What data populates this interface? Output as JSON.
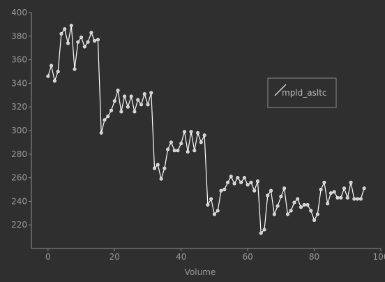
{
  "colors": {
    "background": "#2f2f2f",
    "axis": "#8c8c8c",
    "line": "#ffffff",
    "marker_fill": "#cfcfcf",
    "marker_edge": "#ffffff",
    "text": "#9a9a9a",
    "legend_border": "#8c8c8c"
  },
  "chart_data": {
    "type": "line",
    "title": "",
    "xlabel": "Volume",
    "ylabel": "",
    "xlim": [
      -5,
      100
    ],
    "ylim": [
      200,
      400
    ],
    "xticks": [
      0,
      20,
      40,
      60,
      80,
      100
    ],
    "yticks": [
      220,
      240,
      260,
      280,
      300,
      320,
      340,
      360,
      380,
      400
    ],
    "grid": false,
    "legend_position": "center-right",
    "series": [
      {
        "name": "mpld_asltc",
        "marker": "circle",
        "x": [
          0,
          1,
          2,
          3,
          4,
          5,
          6,
          7,
          8,
          9,
          10,
          11,
          12,
          13,
          14,
          15,
          16,
          17,
          18,
          19,
          20,
          21,
          22,
          23,
          24,
          25,
          26,
          27,
          28,
          29,
          30,
          31,
          32,
          33,
          34,
          35,
          36,
          37,
          38,
          39,
          40,
          41,
          42,
          43,
          44,
          45,
          46,
          47,
          48,
          49,
          50,
          51,
          52,
          53,
          54,
          55,
          56,
          57,
          58,
          59,
          60,
          61,
          62,
          63,
          64,
          65,
          66,
          67,
          68,
          69,
          70,
          71,
          72,
          73,
          74,
          75,
          76,
          77,
          78,
          79,
          80,
          81,
          82,
          83,
          84,
          85,
          86,
          87,
          88,
          89,
          90,
          91,
          92,
          93,
          94,
          95
        ],
        "y": [
          346,
          355,
          342,
          350,
          382,
          386,
          374,
          389,
          352,
          375,
          379,
          371,
          375,
          383,
          376,
          377,
          298,
          309,
          312,
          317,
          325,
          334,
          316,
          329,
          320,
          329,
          316,
          326,
          322,
          331,
          322,
          332,
          268,
          271,
          259,
          268,
          284,
          290,
          283,
          283,
          289,
          299,
          282,
          299,
          283,
          298,
          290,
          296,
          237,
          242,
          229,
          232,
          249,
          250,
          256,
          261,
          255,
          260,
          256,
          260,
          254,
          256,
          249,
          257,
          213,
          216,
          245,
          249,
          229,
          236,
          244,
          251,
          229,
          232,
          239,
          242,
          235,
          237,
          237,
          232,
          224,
          229,
          250,
          256,
          238,
          247,
          248,
          243,
          243,
          251,
          243,
          256,
          242,
          242,
          242,
          251
        ]
      }
    ]
  }
}
